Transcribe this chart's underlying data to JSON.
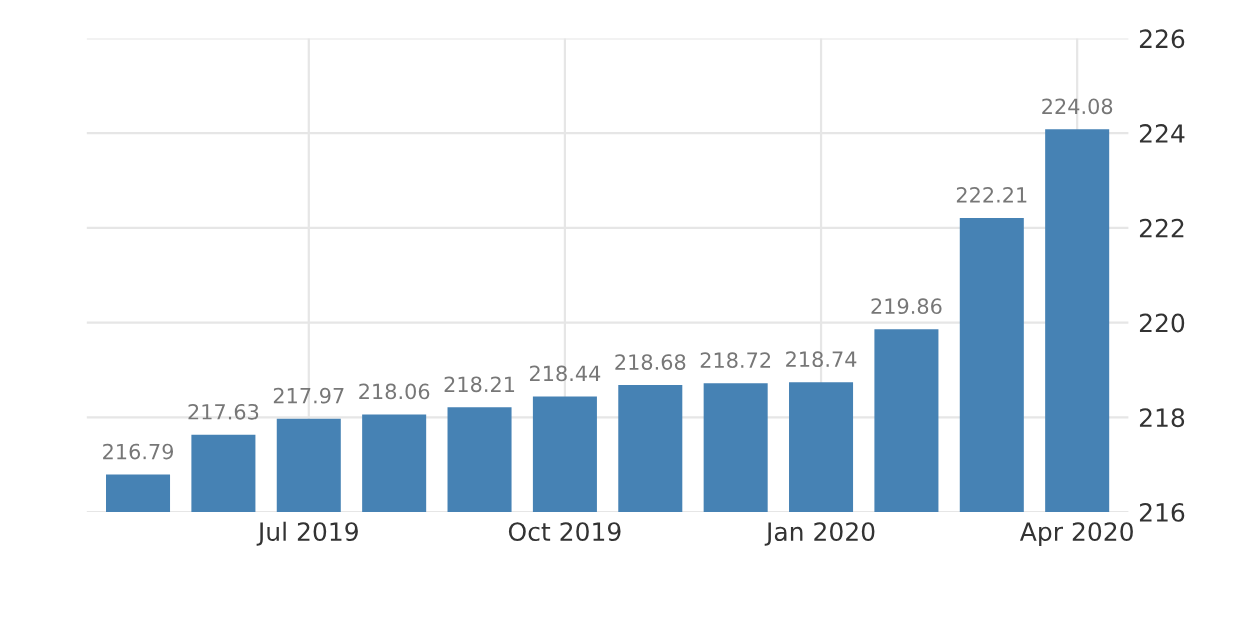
{
  "chart_data": {
    "type": "bar",
    "categories": [
      null,
      null,
      "Jul 2019",
      null,
      null,
      "Oct 2019",
      null,
      null,
      "Jan 2020",
      null,
      null,
      "Apr 2020"
    ],
    "values": [
      216.79,
      217.63,
      217.97,
      218.06,
      218.21,
      218.44,
      218.68,
      218.72,
      218.74,
      219.86,
      222.21,
      224.08
    ],
    "color": "#4682b4",
    "ylim": [
      216,
      226
    ],
    "yticks": [
      216,
      218,
      220,
      222,
      224,
      226
    ],
    "grid": true,
    "data_labels": true
  }
}
